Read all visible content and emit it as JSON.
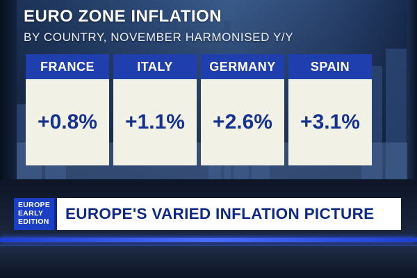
{
  "graphic": {
    "title": "EURO ZONE INFLATION",
    "subtitle": "BY COUNTRY, NOVEMBER HARMONISED Y/Y",
    "cards": [
      {
        "country": "FRANCE",
        "value": "+0.8%"
      },
      {
        "country": "ITALY",
        "value": "+1.1%"
      },
      {
        "country": "GERMANY",
        "value": "+2.6%"
      },
      {
        "country": "SPAIN",
        "value": "+3.1%"
      }
    ]
  },
  "lower_third": {
    "show_line1": "EUROPE",
    "show_line2": "EARLY",
    "show_line3": "EDITION",
    "headline": "EUROPE'S VARIED INFLATION PICTURE"
  },
  "colors": {
    "header_blue": "#1f3fae",
    "card_cream": "#f1f1e6",
    "value_blue": "#15338e",
    "show_box_blue": "#1a3fc4",
    "headline_text": "#0e2a86"
  }
}
